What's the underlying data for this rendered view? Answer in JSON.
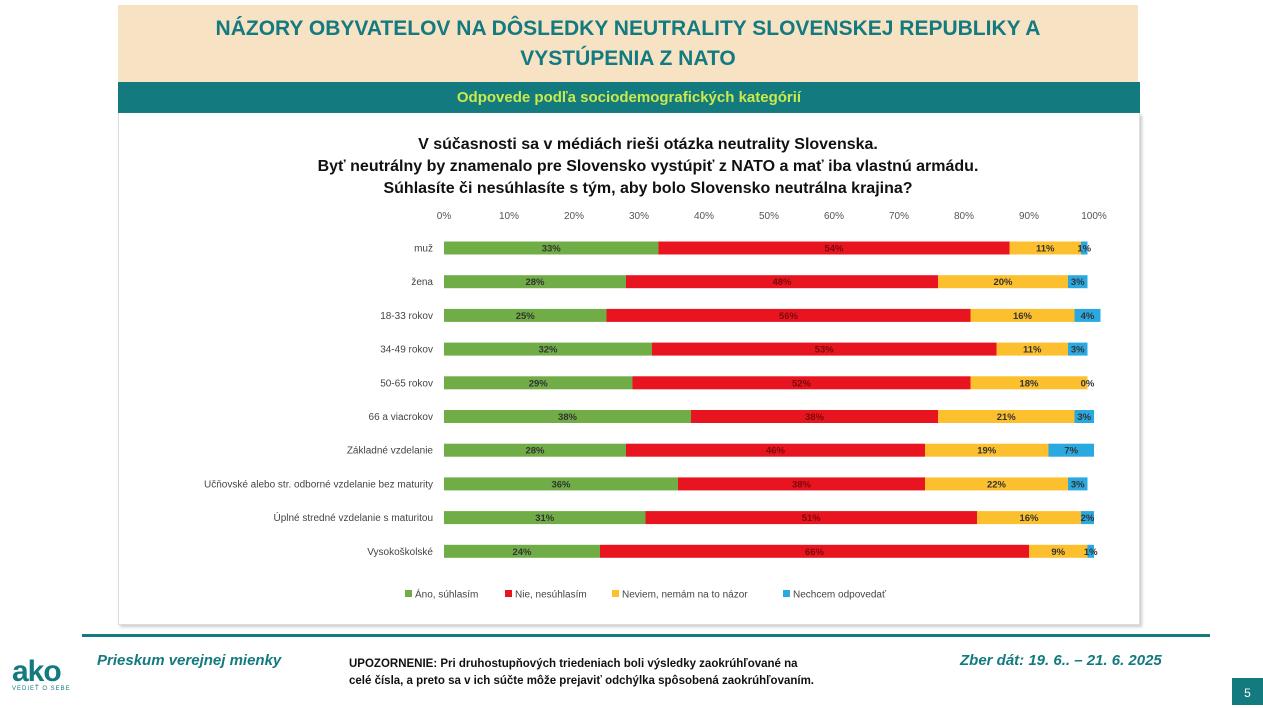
{
  "header": {
    "title": [
      "NÁZORY OBYVATELOV  NA DÔSLEDKY NEUTRALITY SLOVENSKEJ REPUBLIKY A",
      "VYSTÚPENIA Z NATO"
    ],
    "subtitle": "Odpovede podľa sociodemografických kategórií"
  },
  "chart_data": {
    "type": "stacked-bar-horizontal",
    "title": [
      "V súčasnosti sa v médiách rieši otázka neutrality Slovenska.",
      "Byť neutrálny by znamenalo  pre Slovensko vystúpiť z NATO a mať iba vlastnú armádu.",
      "Súhlasíte či nesúhlasíte s tým, aby bolo Slovensko neutrálna krajina?"
    ],
    "categories": [
      "muž",
      "žena",
      "18-33 rokov",
      "34-49 rokov",
      "50-65 rokov",
      "66 a viacrokov",
      "Základné vzdelanie",
      "Učňovské alebo str. odborné vzdelanie bez maturity",
      "Úplné stredné vzdelanie s maturitou",
      "Vysokoškolské"
    ],
    "series": [
      {
        "name": "Áno, súhlasím",
        "color": "#70ad47",
        "values": [
          33,
          28,
          25,
          32,
          29,
          38,
          28,
          36,
          31,
          24
        ],
        "value_labels": [
          "33%",
          "28%",
          "25%",
          "32%",
          "29%",
          "38%",
          "28%",
          "36%",
          "31%",
          "24%"
        ]
      },
      {
        "name": "Nie, nesúhlasím",
        "color": "#e8141f",
        "values": [
          54,
          48,
          56,
          53,
          52,
          38,
          46,
          38,
          51,
          66
        ],
        "value_labels": [
          "54%",
          "48%",
          "56%",
          "53%",
          "52%",
          "38%",
          "46%",
          "38%",
          "51%",
          "66%"
        ]
      },
      {
        "name": "Neviem, nemám na to názor",
        "color": "#fcbf2e",
        "values": [
          11,
          20,
          16,
          11,
          18,
          21,
          19,
          22,
          16,
          9
        ],
        "value_labels": [
          "11%",
          "20%",
          "16%",
          "11%",
          "18%",
          "21%",
          "19%",
          "22%",
          "16%",
          "9%"
        ]
      },
      {
        "name": "Nechcem odpovedať",
        "color": "#2aa9e0",
        "values": [
          1,
          3,
          4,
          3,
          0,
          3,
          7,
          3,
          2,
          1
        ],
        "value_labels": [
          "1%",
          "3%",
          "4%",
          "3%",
          "0%",
          "3%",
          "7%",
          "3%",
          "2%",
          "1%"
        ]
      }
    ],
    "xlim": [
      0,
      100
    ],
    "xticks": [
      {
        "value": 0,
        "label": "0%"
      },
      {
        "value": 10,
        "label": "10%"
      },
      {
        "value": 20,
        "label": "20%"
      },
      {
        "value": 30,
        "label": "30%"
      },
      {
        "value": 40,
        "label": "40%"
      },
      {
        "value": 50,
        "label": "50%"
      },
      {
        "value": 60,
        "label": "60%"
      },
      {
        "value": 70,
        "label": "70%"
      },
      {
        "value": 80,
        "label": "80%"
      },
      {
        "value": 90,
        "label": "90%"
      },
      {
        "value": 100,
        "label": "100%"
      }
    ],
    "legend": "bottom"
  },
  "footer": {
    "survey": "Prieskum verejnej mienky",
    "warning": [
      "UPOZORNENIE: Pri druhostupňových triedeniach boli výsledky zaokrúhľované na",
      "celé čísla, a preto sa v ich súčte môže prejaviť odchýlka spôsobená zaokrúhľovaním."
    ],
    "date": "Zber dát: 19. 6.. – 21. 6. 2025",
    "page": "5",
    "logo": "ako",
    "tagline": "VEDIEŤ O SEBE"
  }
}
